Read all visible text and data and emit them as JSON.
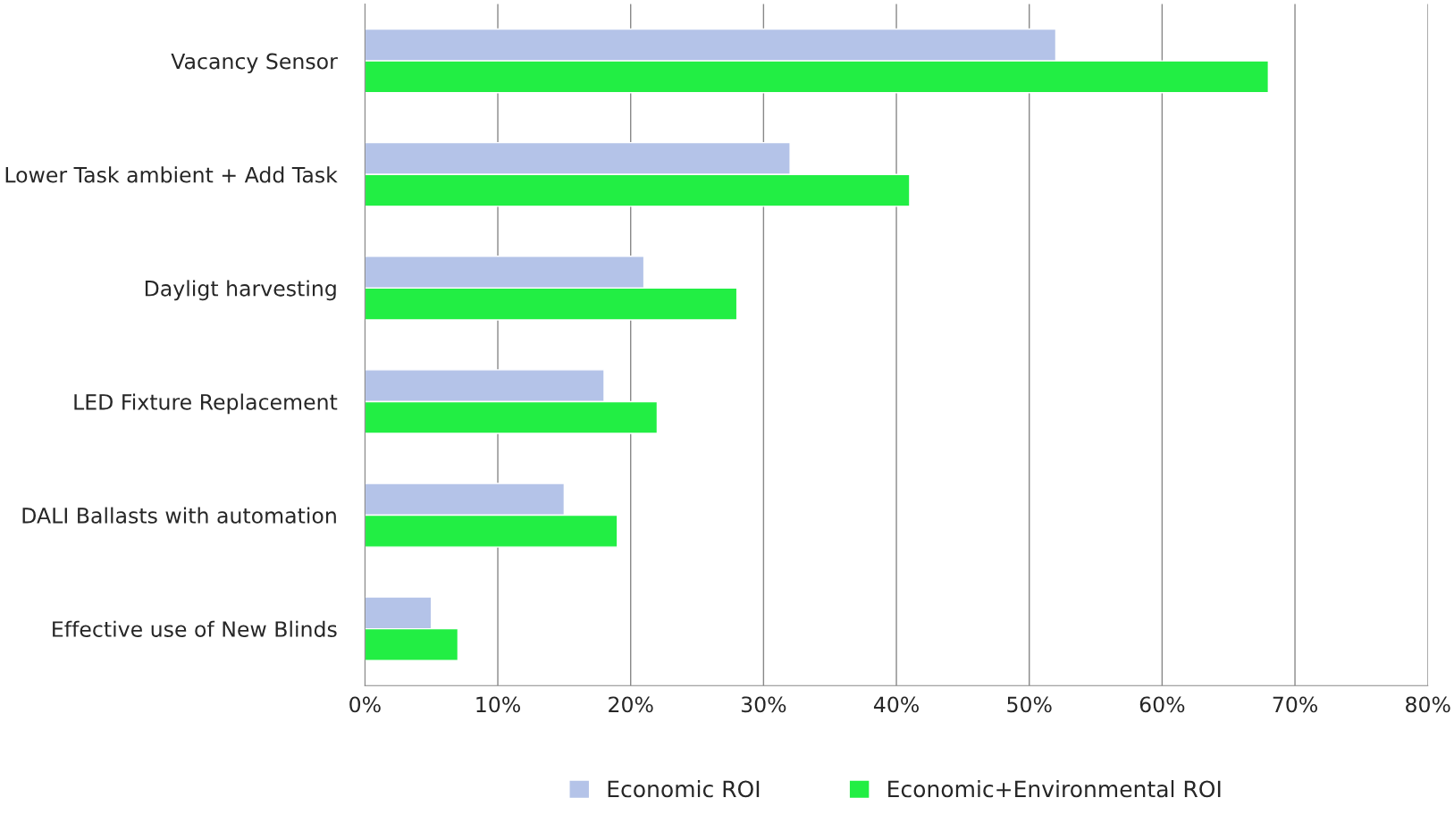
{
  "chart_data": {
    "type": "bar",
    "orientation": "horizontal",
    "categories": [
      "Vacancy Sensor",
      "Lower Task ambient + Add Task",
      "Dayligt harvesting",
      "LED Fixture Replacement",
      "DALI Ballasts with automation",
      "Effective use of New Blinds"
    ],
    "series": [
      {
        "name": "Economic ROI",
        "color": "#b4c3e8",
        "values": [
          52,
          32,
          21,
          18,
          15,
          5
        ]
      },
      {
        "name": "Economic+Environmental ROI",
        "color": "#22ee44",
        "values": [
          68,
          41,
          28,
          22,
          19,
          7
        ]
      }
    ],
    "xlim": [
      0,
      80
    ],
    "xticks": [
      {
        "value": 0,
        "label": "0%"
      },
      {
        "value": 10,
        "label": "10%"
      },
      {
        "value": 20,
        "label": "20%"
      },
      {
        "value": 30,
        "label": "30%"
      },
      {
        "value": 40,
        "label": "40%"
      },
      {
        "value": 50,
        "label": "50%"
      },
      {
        "value": 60,
        "label": "60%"
      },
      {
        "value": 70,
        "label": "70%"
      },
      {
        "value": 80,
        "label": "80%"
      }
    ],
    "grid": "x",
    "legend": "bottom"
  }
}
